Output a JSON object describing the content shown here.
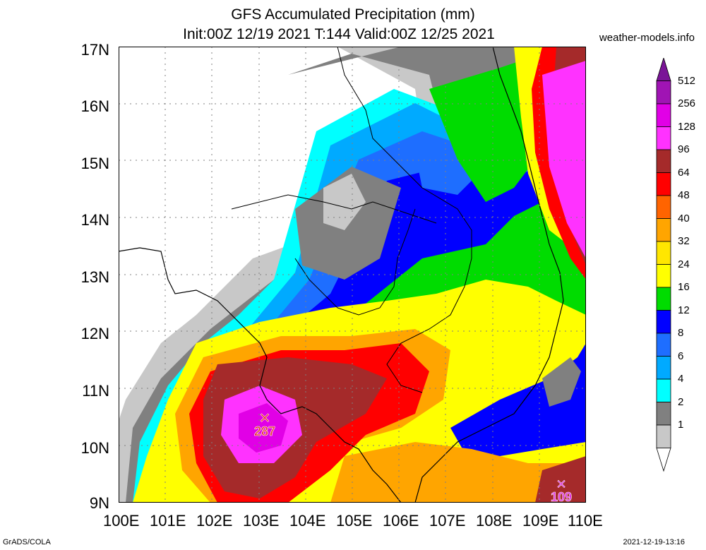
{
  "header": {
    "title_line1": "GFS Accumulated Precipitation (mm)",
    "title_line2": "Init:00Z 12/19 2021 T:144 Valid:00Z 12/25 2021",
    "site": "weather-models.info"
  },
  "map": {
    "lat_labels": [
      "17N",
      "16N",
      "15N",
      "14N",
      "13N",
      "12N",
      "11N",
      "10N",
      "9N"
    ],
    "lon_labels": [
      "100E",
      "101E",
      "102E",
      "103E",
      "104E",
      "105E",
      "106E",
      "107E",
      "108E",
      "109E",
      "110E"
    ],
    "max_markers": [
      {
        "label": "287",
        "color": "#e8332e",
        "value_mm": 287
      },
      {
        "label": "109",
        "color": "#e030e0",
        "value_mm": 109
      }
    ]
  },
  "colorbar": {
    "levels": [
      "512",
      "256",
      "128",
      "96",
      "64",
      "48",
      "40",
      "32",
      "24",
      "16",
      "12",
      "8",
      "6",
      "4",
      "2",
      "1"
    ],
    "colors": [
      "#7a1497",
      "#a014b4",
      "#e100e6",
      "#ff32ff",
      "#a52a2a",
      "#ff0000",
      "#ff6400",
      "#ffa500",
      "#ffe600",
      "#ffff00",
      "#00dc00",
      "#0000ff",
      "#1e6eff",
      "#00aaff",
      "#00ffff",
      "#808080",
      "#c8c8c8",
      "#ffffff"
    ]
  },
  "footer": {
    "left": "GrADS/COLA",
    "right": "2021-12-19-13:16"
  }
}
